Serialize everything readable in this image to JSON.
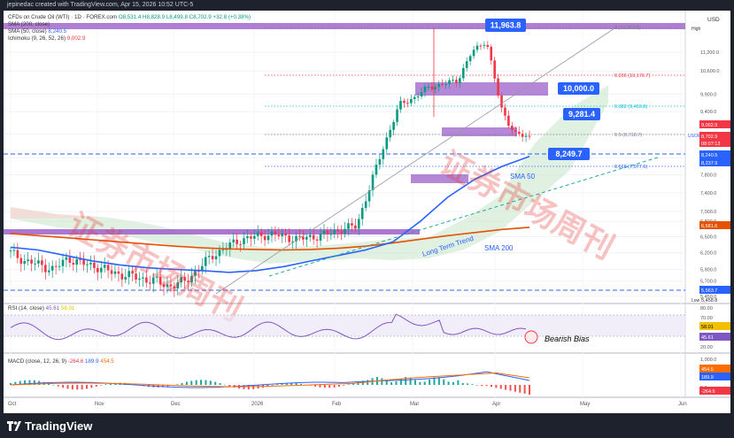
{
  "header": {
    "caption": "jepinedac created with TradingView.com, Apr 15, 2026 10:52 UTC-5"
  },
  "legend": {
    "symbol_line": "CFDs on Crude Oil (WTI) · 1D · FOREX.com",
    "ohlc": "O8,531.4 H8,828.9 L8,499.8 C8,702.9 +32.8 (+0.38%)",
    "change": "+32.8 (+0.38%)",
    "sma200": "SMA (200, close)",
    "sma50_label": "SMA (50, close)",
    "sma50_value": "8,240.5",
    "ichimoku_label": "Ichimoku (9, 26, 52, 26)",
    "ichimoku_value": "9,002.9",
    "rsi_label": "RSI (14, close)",
    "rsi_value": "45.61",
    "rsi_value2": "58.01",
    "macd_label": "MACD (close, 12, 26, 9)",
    "macd_values": [
      "-264.6",
      "189.9",
      "454.5"
    ]
  },
  "currency": "USD",
  "fib": [
    {
      "label": "0 (11,963.8)"
    },
    {
      "label": "0.236 (10,176.7)"
    },
    {
      "label": "0.382 (9,459.8)"
    },
    {
      "label": "0.5 (8,718.7)"
    },
    {
      "label": "0.618 (7,977.6)"
    }
  ],
  "callouts": {
    "high": "11,963.8",
    "resistance": "10,000.0",
    "mid": "9,281.4",
    "support": "8,249.7"
  },
  "annotations": {
    "sma50": "SMA 50",
    "sma200": "SMA 200",
    "trend": "Long Term Trend",
    "bias": "Bearish Bias",
    "watermark": "证券市场周刊"
  },
  "price_tags": {
    "high_word": "High",
    "low_word": "Low",
    "usoil": "USOIL",
    "last": "8,702.9",
    "countdown": "08:07:13",
    "ichi": "9,002.9",
    "sma50": "8,240.5",
    "s2": "8,237.9",
    "sma200": "6,681.6",
    "low_level": "5,563.7",
    "low_price": "5,458.8"
  },
  "rsi_tags": {
    "a": "58.01",
    "b": "45.61"
  },
  "macd_tags": {
    "a": "454.5",
    "b": "189.9",
    "c": "-264.6"
  },
  "brand": {
    "name": "TradingView",
    "name_top": "17 TradingView"
  },
  "colors": {
    "bull": "#089981",
    "bear": "#f23645",
    "sma50": "#2962ff",
    "sma200": "#e65100",
    "zone": "#9c5fc9",
    "callout": "#2962ff",
    "rsi": "#7e57c2",
    "macd_line": "#2962ff",
    "signal_line": "#ff6d00"
  },
  "chart_data": {
    "type": "line",
    "title": "CFDs on Crude Oil (WTI) · 1D · FOREX.com",
    "x_ticks": [
      "Oct",
      "Nov",
      "Dec",
      "2026",
      "Feb",
      "Mar",
      "Apr",
      "May",
      "Jun"
    ],
    "y_ticks": [
      11200,
      10600,
      9900,
      9400,
      8800,
      8200,
      7800,
      7400,
      7000,
      6800,
      6500,
      6200,
      5900,
      5700,
      5450
    ],
    "y_tick_labels": [
      "11,200.0",
      "10,600.0",
      "9,900.0",
      "9,400.0",
      "8,800.0",
      "8,200.0",
      "7,800.0",
      "7,400.0",
      "7,000.0",
      "6,800.0",
      "6,500.0",
      "6,200.0",
      "5,900.0",
      "5,700.0",
      "5,450.0"
    ],
    "ylim": [
      5350,
      12150
    ],
    "rsi_ticks": [
      "80.00",
      "70.00",
      "40.00",
      "30.00",
      "20.00"
    ],
    "macd_ticks": [
      "1,000.0",
      "500.0",
      "0.0"
    ],
    "levels": [
      11963.8,
      10176.7,
      10000.0,
      9459.8,
      9281.4,
      8718.7,
      8249.7,
      7977.6,
      5563.7
    ],
    "zones": [
      {
        "from": 9850,
        "to": 10100,
        "x_from": "Mar 13",
        "x_to": "Apr 15"
      },
      {
        "from": 8650,
        "to": 8850,
        "x_from": "Mar 18",
        "x_to": "Apr 9"
      },
      {
        "from": 7600,
        "to": 7800,
        "x_from": "Mar 2",
        "x_to": "Mar 25"
      },
      {
        "from": 6500,
        "to": 6580,
        "x_from": "Sep 28",
        "x_to": "Mar 5"
      }
    ],
    "series": [
      {
        "name": "SMA 50",
        "values": [
          6300,
          6250,
          6150,
          6050,
          5980,
          5930,
          5900,
          5880,
          5850,
          5880,
          5950,
          6050,
          6150,
          6250,
          6400,
          6800,
          7300,
          7700,
          8000,
          8240
        ]
      },
      {
        "name": "SMA 200",
        "values": [
          6560,
          6520,
          6480,
          6440,
          6400,
          6360,
          6320,
          6290,
          6270,
          6260,
          6250,
          6260,
          6280,
          6320,
          6380,
          6450,
          6520,
          6580,
          6640,
          6682
        ]
      }
    ],
    "close": [
      6200,
      6050,
      5980,
      5900,
      6100,
      6000,
      5950,
      5850,
      5800,
      5750,
      5700,
      5620,
      5680,
      5900,
      6150,
      6300,
      6450,
      6500,
      6550,
      6500,
      6450,
      6500,
      6550,
      6650,
      6700,
      7600,
      8600,
      9600,
      9800,
      10100,
      10200,
      10300,
      11200,
      11600,
      9500,
      8800,
      8703
    ]
  }
}
